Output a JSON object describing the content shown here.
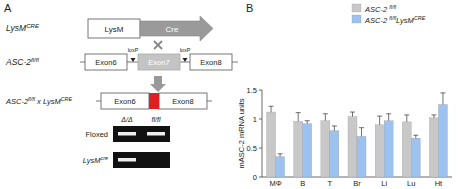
{
  "panel_labels": [
    "A",
    "B"
  ],
  "diagram": {
    "lysm_cre": {
      "label": "LysMCRE",
      "promoter": "LysM",
      "gene": "Cre"
    },
    "floxed_allele": {
      "label": "ASC-2fl/fl",
      "exons": [
        "Exon6",
        "Exon7",
        "Exon8"
      ],
      "loxp": [
        "loxP",
        "loxP"
      ]
    },
    "deleted_allele": {
      "label": "ASC-2fl/fl x LysMCRE",
      "exons": [
        "Exon6",
        "Exon8"
      ]
    },
    "gel": {
      "lanes": [
        "Δ/Δ",
        "fl/fl"
      ],
      "rows": [
        "Floxed",
        "LysMcre"
      ]
    }
  },
  "chart_data": {
    "type": "bar",
    "y_label": "mASC-2 mRNA units",
    "categories": [
      "MΦ",
      "B",
      "T",
      "Br",
      "Li",
      "Lu",
      "Ht"
    ],
    "series": [
      {
        "name": "ASC-2 fl/fl",
        "color": "#c8c8c8",
        "values": [
          1.12,
          0.96,
          0.97,
          1.04,
          0.9,
          0.95,
          1.02
        ],
        "errors": [
          0.1,
          0.15,
          0.12,
          0.08,
          0.15,
          0.12,
          0.05
        ]
      },
      {
        "name": "ASC-2 fl/flLysMCRE",
        "color": "#9cc3f0",
        "values": [
          0.35,
          0.92,
          0.8,
          0.7,
          0.97,
          0.67,
          1.25
        ],
        "errors": [
          0.05,
          0.05,
          0.08,
          0.15,
          0.12,
          0.05,
          0.2
        ]
      }
    ],
    "ylim": [
      0,
      1.5
    ],
    "yticks": [
      0,
      0.5,
      1,
      1.5
    ],
    "legend": "top-right",
    "grid": false
  }
}
